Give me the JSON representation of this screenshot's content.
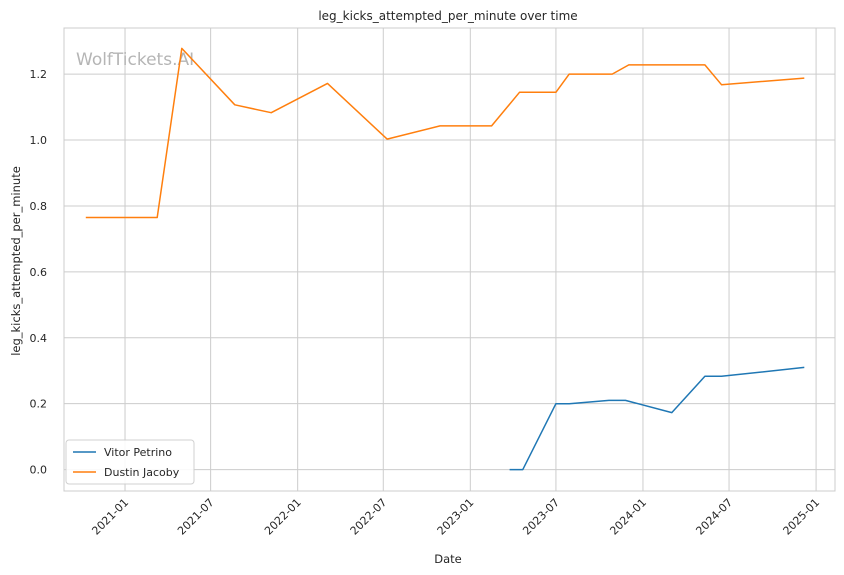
{
  "chart_data": {
    "type": "line",
    "title": "leg_kicks_attempted_per_minute over time",
    "xlabel": "Date",
    "ylabel": "leg_kicks_attempted_per_minute",
    "watermark": "WolfTickets.AI",
    "xlim": [
      "2020-08-25",
      "2025-02-10"
    ],
    "ylim": [
      -0.065,
      1.34
    ],
    "x_ticks": [
      {
        "date": "2021-01-01",
        "label": "2021-01"
      },
      {
        "date": "2021-07-01",
        "label": "2021-07"
      },
      {
        "date": "2022-01-01",
        "label": "2022-01"
      },
      {
        "date": "2022-07-01",
        "label": "2022-07"
      },
      {
        "date": "2023-01-01",
        "label": "2023-01"
      },
      {
        "date": "2023-07-01",
        "label": "2023-07"
      },
      {
        "date": "2024-01-01",
        "label": "2024-01"
      },
      {
        "date": "2024-07-01",
        "label": "2024-07"
      },
      {
        "date": "2025-01-01",
        "label": "2025-01"
      }
    ],
    "y_ticks": [
      {
        "value": 0.0,
        "label": "0.0"
      },
      {
        "value": 0.2,
        "label": "0.2"
      },
      {
        "value": 0.4,
        "label": "0.4"
      },
      {
        "value": 0.6,
        "label": "0.6"
      },
      {
        "value": 0.8,
        "label": "0.8"
      },
      {
        "value": 1.0,
        "label": "1.0"
      },
      {
        "value": 1.2,
        "label": "1.2"
      }
    ],
    "grid": true,
    "legend_position": "lower-left",
    "series": [
      {
        "name": "Vitor Petrino",
        "color": "#1f77b4",
        "points": [
          {
            "x": "2023-03-25",
            "y": 0.0
          },
          {
            "x": "2023-04-22",
            "y": 0.0
          },
          {
            "x": "2023-07-01",
            "y": 0.2
          },
          {
            "x": "2023-07-29",
            "y": 0.2
          },
          {
            "x": "2023-10-21",
            "y": 0.21
          },
          {
            "x": "2023-11-25",
            "y": 0.21
          },
          {
            "x": "2024-03-02",
            "y": 0.173
          },
          {
            "x": "2024-05-11",
            "y": 0.283
          },
          {
            "x": "2024-06-15",
            "y": 0.283
          },
          {
            "x": "2024-12-07",
            "y": 0.31
          }
        ]
      },
      {
        "name": "Dustin Jacoby",
        "color": "#ff7f0e",
        "points": [
          {
            "x": "2020-10-10",
            "y": 0.765
          },
          {
            "x": "2021-01-09",
            "y": 0.765
          },
          {
            "x": "2021-03-10",
            "y": 0.765
          },
          {
            "x": "2021-05-01",
            "y": 1.278
          },
          {
            "x": "2021-08-21",
            "y": 1.107
          },
          {
            "x": "2021-11-06",
            "y": 1.083
          },
          {
            "x": "2022-03-05",
            "y": 1.172
          },
          {
            "x": "2022-07-09",
            "y": 1.003
          },
          {
            "x": "2022-10-29",
            "y": 1.043
          },
          {
            "x": "2023-02-15",
            "y": 1.043
          },
          {
            "x": "2023-04-15",
            "y": 1.145
          },
          {
            "x": "2023-07-01",
            "y": 1.145
          },
          {
            "x": "2023-07-29",
            "y": 1.2
          },
          {
            "x": "2023-10-28",
            "y": 1.2
          },
          {
            "x": "2023-12-02",
            "y": 1.228
          },
          {
            "x": "2024-05-11",
            "y": 1.228
          },
          {
            "x": "2024-06-15",
            "y": 1.168
          },
          {
            "x": "2024-12-07",
            "y": 1.188
          }
        ]
      }
    ]
  }
}
